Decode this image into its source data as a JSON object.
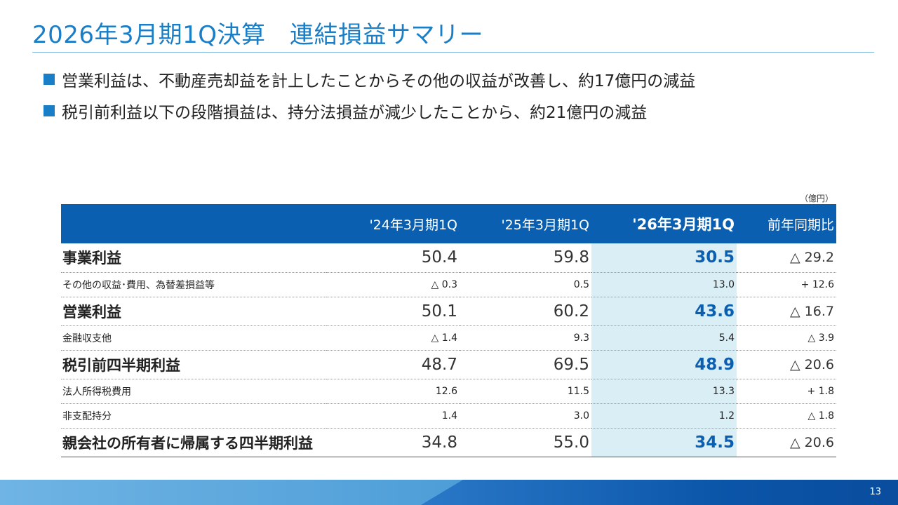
{
  "title": "2026年3月期1Q決算　連結損益サマリー",
  "bullets": [
    "営業利益は、不動産売却益を計上したことからその他の収益が改善し、約17億円の減益",
    "税引前利益以下の段階損益は、持分法損益が減少したことから、約21億円の減益"
  ],
  "unit": "（億円）",
  "table": {
    "headers": [
      "",
      "'24年3月期1Q",
      "'25年3月期1Q",
      "'26年3月期1Q",
      "前年同期比"
    ],
    "rows": [
      {
        "label": "事業利益",
        "v1": "50.4",
        "v2": "59.8",
        "v3": "30.5",
        "diff": "△ 29.2"
      },
      {
        "label": "その他の収益･費用、為替差損益等",
        "v1": "△ 0.3",
        "v2": "0.5",
        "v3": "13.0",
        "diff": "+ 12.6"
      },
      {
        "label": "営業利益",
        "v1": "50.1",
        "v2": "60.2",
        "v3": "43.6",
        "diff": "△ 16.7"
      },
      {
        "label": "金融収支他",
        "v1": "△ 1.4",
        "v2": "9.3",
        "v3": "5.4",
        "diff": "△ 3.9"
      },
      {
        "label": "税引前四半期利益",
        "v1": "48.7",
        "v2": "69.5",
        "v3": "48.9",
        "diff": "△ 20.6"
      },
      {
        "label": "法人所得税費用",
        "v1": "12.6",
        "v2": "11.5",
        "v3": "13.3",
        "diff": "+ 1.8"
      },
      {
        "label": "非支配持分",
        "v1": "1.4",
        "v2": "3.0",
        "v3": "1.2",
        "diff": "△ 1.8"
      },
      {
        "label": "親会社の所有者に帰属する四半期利益",
        "v1": "34.8",
        "v2": "55.0",
        "v3": "34.5",
        "diff": "△ 20.6"
      }
    ]
  },
  "page_number": "13",
  "colors": {
    "accent": "#1a7ec7",
    "header_bg": "#0b5fb0",
    "highlight_bg": "#daeef6",
    "highlight_text": "#0b5fb0"
  }
}
